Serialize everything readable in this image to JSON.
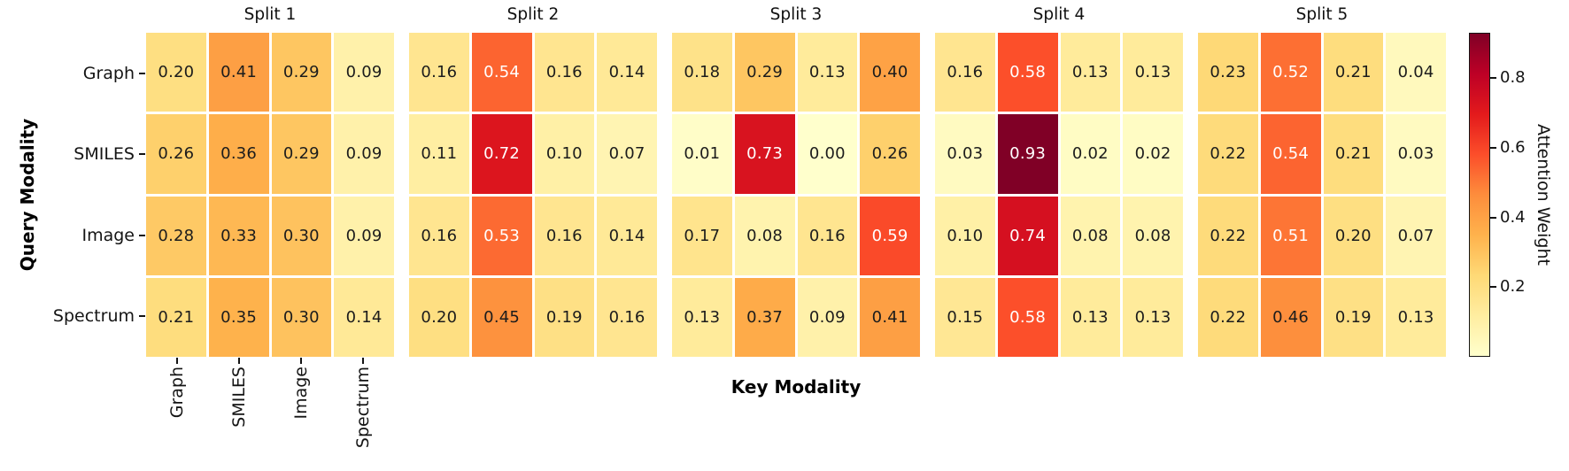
{
  "chart_data": {
    "type": "heatmap",
    "xlabel": "Key Modality",
    "ylabel": "Query Modality",
    "row_labels": [
      "Graph",
      "SMILES",
      "Image",
      "Spectrum"
    ],
    "col_labels": [
      "Graph",
      "SMILES",
      "Image",
      "Spectrum"
    ],
    "colorbar": {
      "label": "Attention Weight",
      "tick_labels": [
        "0.2",
        "0.4",
        "0.6",
        "0.8"
      ],
      "tick_values": [
        0.2,
        0.4,
        0.6,
        0.8
      ],
      "vmin": 0.0,
      "vmax": 0.93,
      "colormap": "YlOrRd",
      "colormap_stops": [
        "#ffffcc",
        "#ffeda0",
        "#fed976",
        "#feb24c",
        "#fd8d3c",
        "#fc4e2a",
        "#e31a1c",
        "#bd0026",
        "#800026"
      ]
    },
    "annotation_text_colors": {
      "dark": "#1c1c1c",
      "light": "#ffffff"
    },
    "splits": [
      {
        "title": "Split 1",
        "values": [
          [
            0.2,
            0.41,
            0.29,
            0.09
          ],
          [
            0.26,
            0.36,
            0.29,
            0.09
          ],
          [
            0.28,
            0.33,
            0.3,
            0.09
          ],
          [
            0.21,
            0.35,
            0.3,
            0.14
          ]
        ]
      },
      {
        "title": "Split 2",
        "values": [
          [
            0.16,
            0.54,
            0.16,
            0.14
          ],
          [
            0.11,
            0.72,
            0.1,
            0.07
          ],
          [
            0.16,
            0.53,
            0.16,
            0.14
          ],
          [
            0.2,
            0.45,
            0.19,
            0.16
          ]
        ]
      },
      {
        "title": "Split 3",
        "values": [
          [
            0.18,
            0.29,
            0.13,
            0.4
          ],
          [
            0.01,
            0.73,
            0.0,
            0.26
          ],
          [
            0.17,
            0.08,
            0.16,
            0.59
          ],
          [
            0.13,
            0.37,
            0.09,
            0.41
          ]
        ]
      },
      {
        "title": "Split 4",
        "values": [
          [
            0.16,
            0.58,
            0.13,
            0.13
          ],
          [
            0.03,
            0.93,
            0.02,
            0.02
          ],
          [
            0.1,
            0.74,
            0.08,
            0.08
          ],
          [
            0.15,
            0.58,
            0.13,
            0.13
          ]
        ]
      },
      {
        "title": "Split 5",
        "values": [
          [
            0.23,
            0.52,
            0.21,
            0.04
          ],
          [
            0.22,
            0.54,
            0.21,
            0.03
          ],
          [
            0.22,
            0.51,
            0.2,
            0.07
          ],
          [
            0.22,
            0.46,
            0.19,
            0.13
          ]
        ]
      }
    ]
  }
}
